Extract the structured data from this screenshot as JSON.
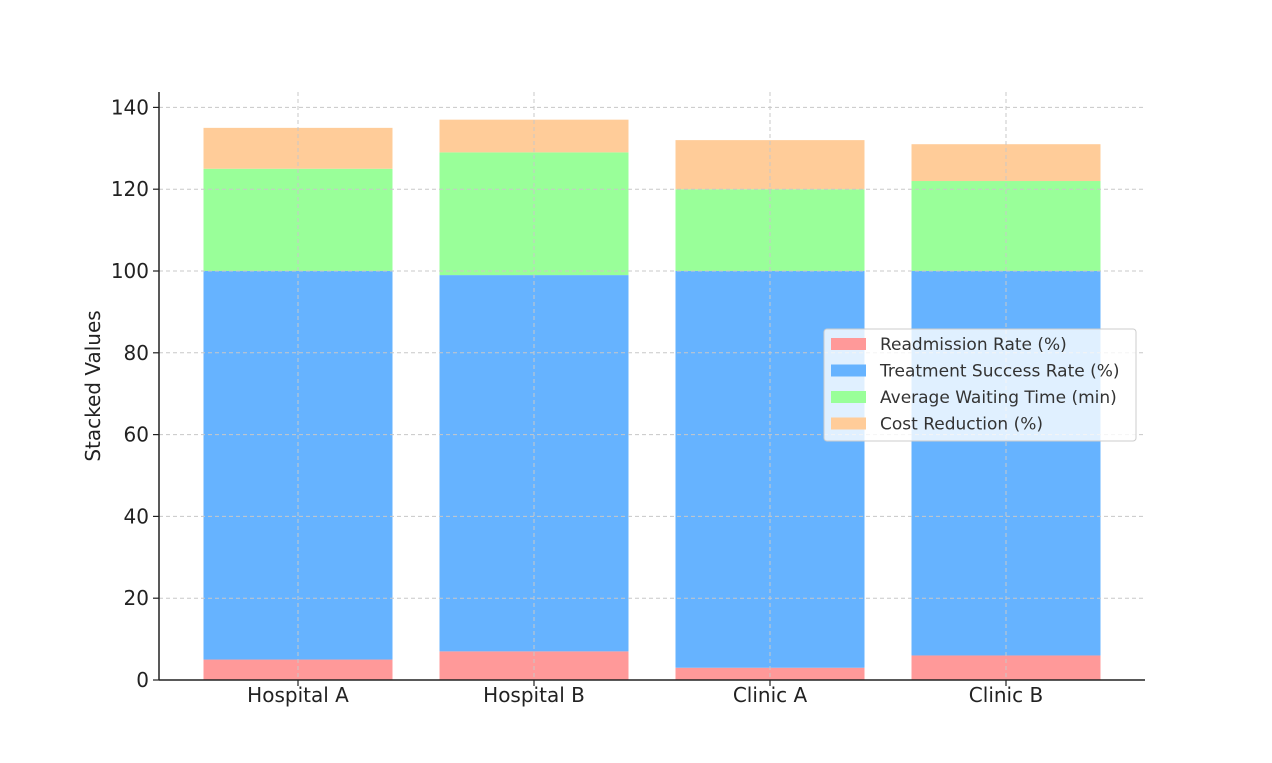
{
  "chart_data": {
    "type": "bar",
    "stacked": true,
    "categories": [
      "Hospital A",
      "Hospital B",
      "Clinic A",
      "Clinic B"
    ],
    "series": [
      {
        "name": "Readmission Rate (%)",
        "values": [
          5,
          7,
          3,
          6
        ],
        "color": "#ff9999"
      },
      {
        "name": "Treatment Success Rate (%)",
        "values": [
          95,
          92,
          97,
          94
        ],
        "color": "#66b3ff"
      },
      {
        "name": "Average Waiting Time (min)",
        "values": [
          25,
          30,
          20,
          22
        ],
        "color": "#99ff99"
      },
      {
        "name": "Cost Reduction (%)",
        "values": [
          10,
          8,
          12,
          9
        ],
        "color": "#ffcc99"
      }
    ],
    "title": "",
    "xlabel": "",
    "ylabel": "Stacked Values",
    "ylim": [
      0,
      144
    ],
    "yticks": [
      0,
      20,
      40,
      60,
      80,
      100,
      120,
      140
    ],
    "grid": true,
    "legend_position": "center-right"
  }
}
